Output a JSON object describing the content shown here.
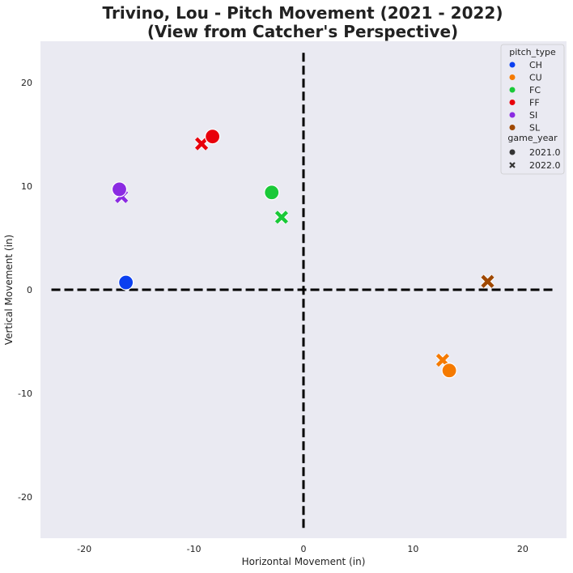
{
  "chart_data": {
    "type": "scatter",
    "title_line1": "Trivino, Lou - Pitch Movement (2021 - 2022)",
    "title_line2": "(View from Catcher's Perspective)",
    "xlabel": "Horizontal Movement (in)",
    "ylabel": "Vertical Movement (in)",
    "xlim": [
      -24,
      24
    ],
    "ylim": [
      -24,
      24
    ],
    "xticks": [
      -20,
      -10,
      0,
      10,
      20
    ],
    "yticks": [
      -20,
      -10,
      0,
      10,
      20
    ],
    "grid": false,
    "background": "#eaeaf2",
    "reference_lines": [
      {
        "orientation": "horizontal",
        "value": 0,
        "from": -23,
        "to": 23,
        "style": "dashed",
        "color": "#000000"
      },
      {
        "orientation": "vertical",
        "value": 0,
        "from": -23,
        "to": 23,
        "style": "dashed",
        "color": "#000000"
      }
    ],
    "legend": {
      "placement": "top-right",
      "hue_title": "pitch_type",
      "style_title": "game_year",
      "hue": [
        {
          "label": "CH",
          "color": "#0b3ff0"
        },
        {
          "label": "CU",
          "color": "#f57a00"
        },
        {
          "label": "FC",
          "color": "#1ac938"
        },
        {
          "label": "FF",
          "color": "#e8000b"
        },
        {
          "label": "SI",
          "color": "#8b2be2"
        },
        {
          "label": "SL",
          "color": "#9f4800"
        }
      ],
      "style": [
        {
          "label": "2021.0",
          "marker": "circle"
        },
        {
          "label": "2022.0",
          "marker": "x"
        }
      ]
    },
    "points": [
      {
        "pitch_type": "CH",
        "game_year": "2021.0",
        "x": -16.2,
        "y": 0.7
      },
      {
        "pitch_type": "CU",
        "game_year": "2022.0",
        "x": 12.7,
        "y": -6.8
      },
      {
        "pitch_type": "CU",
        "game_year": "2021.0",
        "x": 13.3,
        "y": -7.8
      },
      {
        "pitch_type": "FC",
        "game_year": "2021.0",
        "x": -2.9,
        "y": 9.4
      },
      {
        "pitch_type": "FC",
        "game_year": "2022.0",
        "x": -2.0,
        "y": 7.0
      },
      {
        "pitch_type": "FF",
        "game_year": "2022.0",
        "x": -9.3,
        "y": 14.1
      },
      {
        "pitch_type": "FF",
        "game_year": "2021.0",
        "x": -8.3,
        "y": 14.8
      },
      {
        "pitch_type": "SI",
        "game_year": "2022.0",
        "x": -16.6,
        "y": 9.0
      },
      {
        "pitch_type": "SI",
        "game_year": "2021.0",
        "x": -16.8,
        "y": 9.7
      },
      {
        "pitch_type": "SL",
        "game_year": "2022.0",
        "x": 16.8,
        "y": 0.8
      }
    ]
  }
}
